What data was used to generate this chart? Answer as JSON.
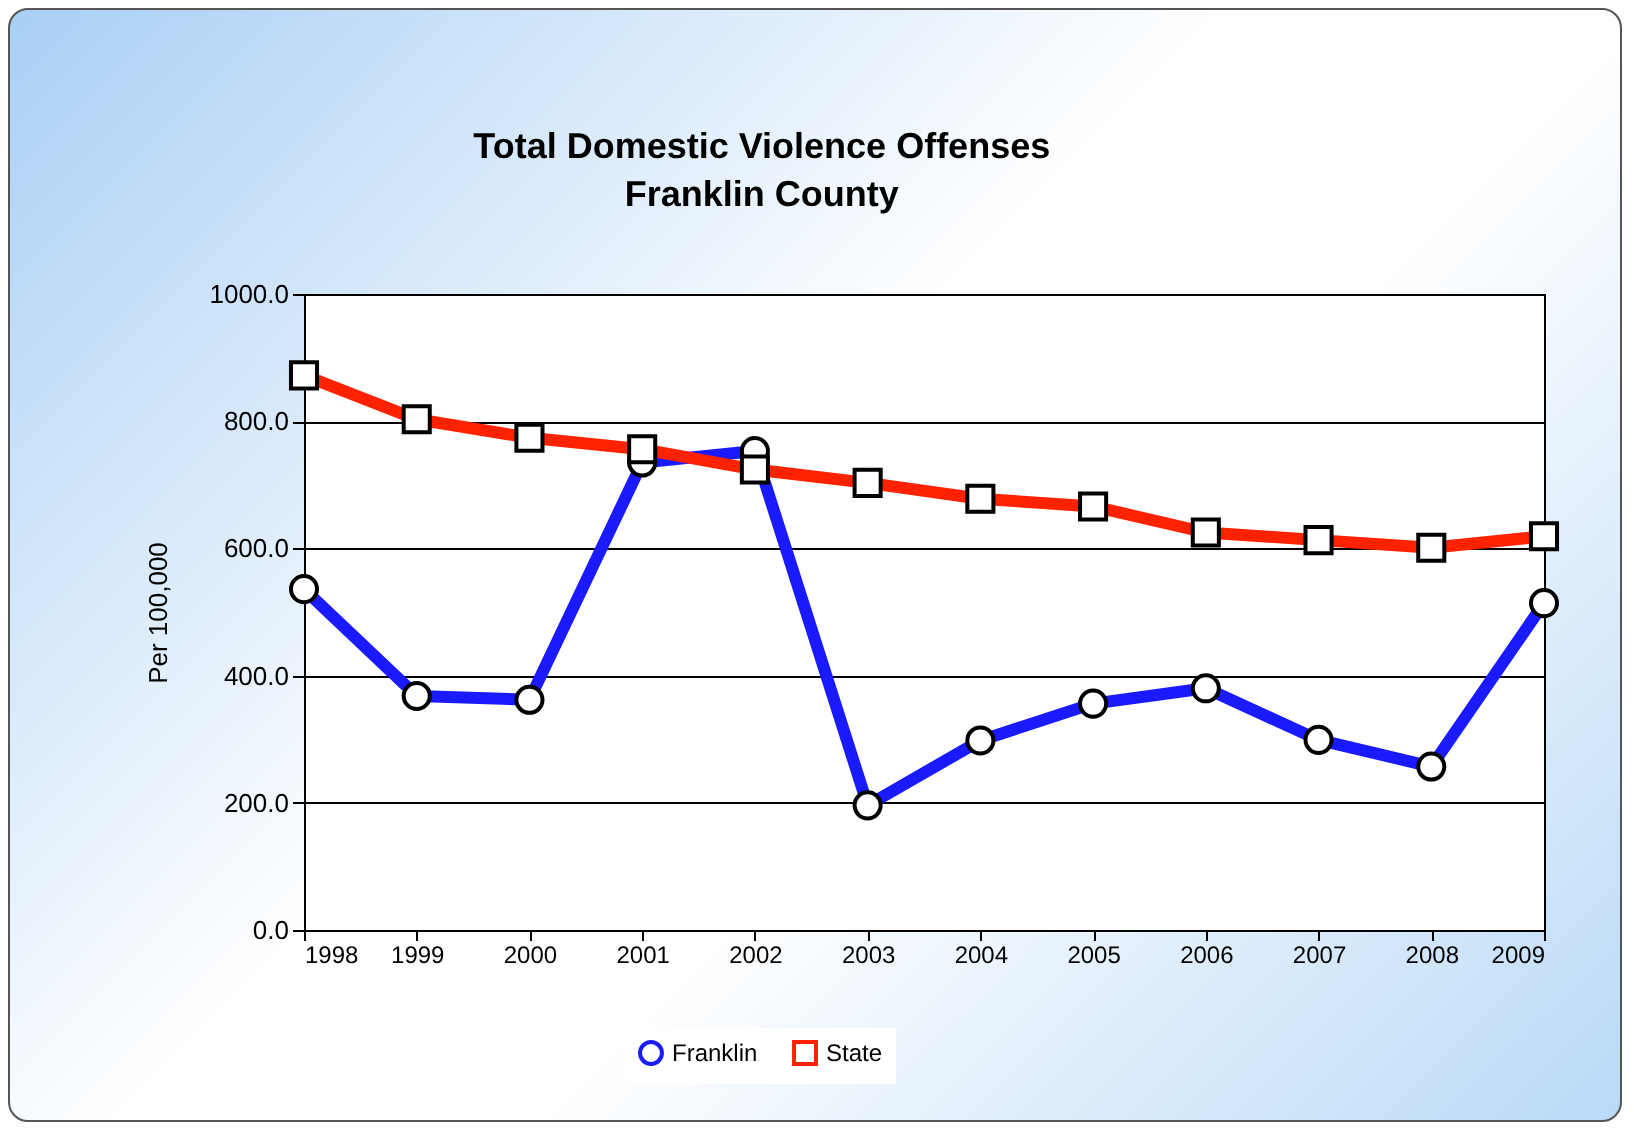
{
  "chart_data": {
    "type": "line",
    "title": "Total Domestic Violence Offenses\nFranklin County",
    "ylabel": "Per 100,000",
    "x": [
      1998,
      1999,
      2000,
      2001,
      2002,
      2003,
      2004,
      2005,
      2006,
      2007,
      2008,
      2009
    ],
    "series": [
      {
        "name": "Franklin",
        "color": "#1a1aff",
        "marker": "circle",
        "values": [
          536,
          368,
          362,
          735,
          753,
          196,
          298,
          356,
          380,
          299,
          257,
          514
        ]
      },
      {
        "name": "State",
        "color": "#ff2200",
        "marker": "square",
        "values": [
          872,
          803,
          774,
          756,
          724,
          703,
          678,
          666,
          625,
          613,
          601,
          619
        ]
      }
    ],
    "xlim": [
      1998,
      2009
    ],
    "xticks": [
      1998,
      1999,
      2000,
      2001,
      2002,
      2003,
      2004,
      2005,
      2006,
      2007,
      2008,
      2009
    ],
    "ylim": [
      0,
      1000
    ],
    "yticks": [
      {
        "value": 0,
        "label": "0.0"
      },
      {
        "value": 200,
        "label": "200.0"
      },
      {
        "value": 400,
        "label": "400.0"
      },
      {
        "value": 600,
        "label": "600.0"
      },
      {
        "value": 800,
        "label": "800.0"
      },
      {
        "value": 1000,
        "label": "1000.0"
      }
    ],
    "grid": "y",
    "legend": "bottom",
    "line_style": "solid"
  }
}
